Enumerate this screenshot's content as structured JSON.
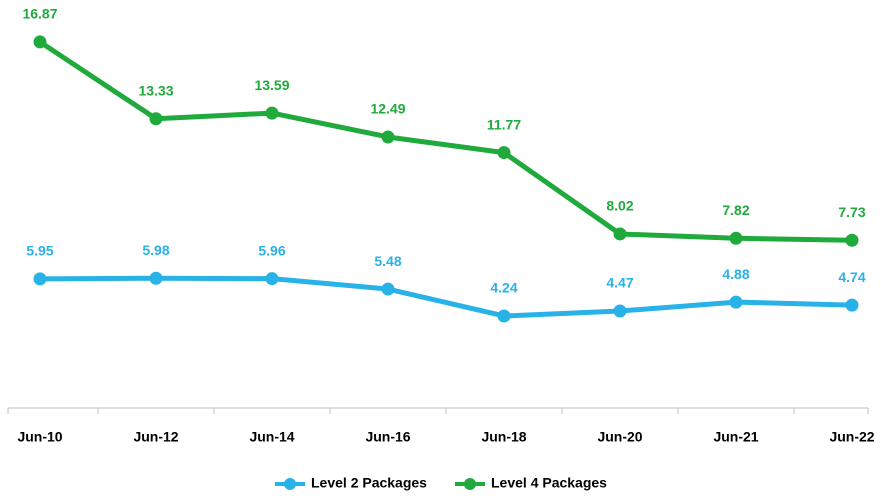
{
  "chart_data": {
    "type": "line",
    "categories": [
      "Jun-10",
      "Jun-12",
      "Jun-14",
      "Jun-16",
      "Jun-18",
      "Jun-20",
      "Jun-21",
      "Jun-22"
    ],
    "series": [
      {
        "name": "Level 2 Packages",
        "color": "#29b2e8",
        "values": [
          5.95,
          5.98,
          5.96,
          5.48,
          4.24,
          4.47,
          4.88,
          4.74
        ]
      },
      {
        "name": "Level 4 Packages",
        "color": "#1faa3b",
        "values": [
          16.87,
          13.33,
          13.59,
          12.49,
          11.77,
          8.02,
          7.82,
          7.73
        ]
      }
    ],
    "legend": "bottom"
  }
}
